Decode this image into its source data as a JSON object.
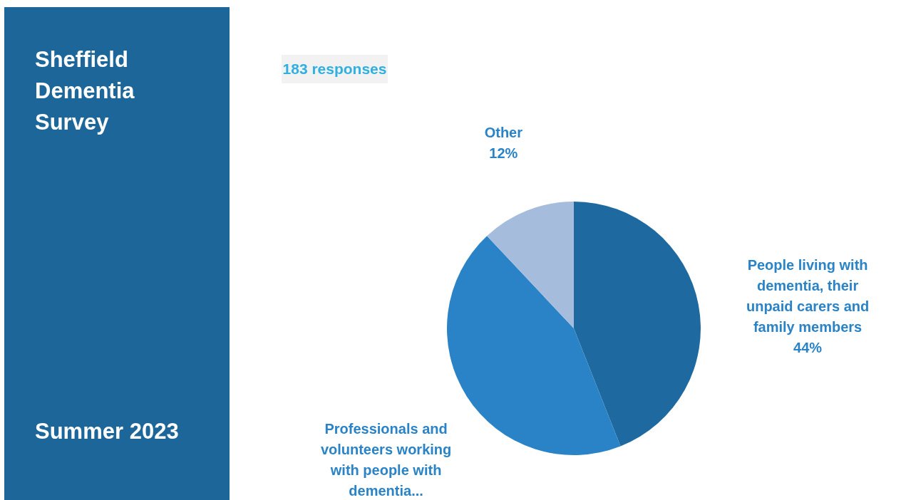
{
  "chart_data": {
    "type": "pie",
    "title": "Sheffield Dementia Survey",
    "subtitle": "Summer 2023",
    "annotations": [
      "183 responses"
    ],
    "categories": [
      "People living with dementia, their unpaid carers and family members",
      "Professionals and volunteers working with people with dementia...",
      "Other"
    ],
    "values": [
      44,
      44,
      12
    ],
    "value_labels": [
      "44%",
      null,
      "12%"
    ],
    "colors": [
      "#1e69a0",
      "#2983c6",
      "#a6bcdd"
    ]
  }
}
